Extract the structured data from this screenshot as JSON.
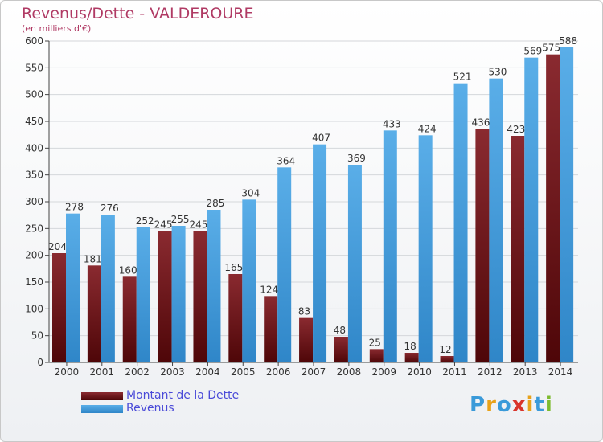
{
  "chart_data": {
    "type": "bar",
    "title": "Revenus/Dette - VALDEROURE",
    "subtitle": "(en milliers d'€)",
    "categories": [
      "2000",
      "2001",
      "2002",
      "2003",
      "2004",
      "2005",
      "2006",
      "2007",
      "2008",
      "2009",
      "2010",
      "2011",
      "2012",
      "2013",
      "2014"
    ],
    "series": [
      {
        "name": "Montant de la Dette",
        "color": "#7a1f24",
        "values": [
          204,
          181,
          160,
          245,
          245,
          165,
          124,
          83,
          48,
          25,
          18,
          12,
          436,
          423,
          575
        ]
      },
      {
        "name": "Revenus",
        "color": "#4fa3e3",
        "values": [
          278,
          276,
          252,
          255,
          285,
          304,
          364,
          407,
          369,
          433,
          424,
          521,
          530,
          569,
          588
        ]
      }
    ],
    "ylim": [
      0,
      600
    ],
    "yticks": [
      0,
      50,
      100,
      150,
      200,
      250,
      300,
      350,
      400,
      450,
      500,
      550,
      600
    ],
    "grid": true,
    "legend_position": "bottom-left"
  },
  "logo": {
    "text": "Proxiti",
    "letters": [
      {
        "ch": "P",
        "color": "#3a9ad9"
      },
      {
        "ch": "r",
        "color": "#e8a21a"
      },
      {
        "ch": "o",
        "color": "#3a9ad9"
      },
      {
        "ch": "x",
        "color": "#d9342b"
      },
      {
        "ch": "i",
        "color": "#e8a21a"
      },
      {
        "ch": "t",
        "color": "#3a9ad9"
      },
      {
        "ch": "i",
        "color": "#7dbb2d"
      }
    ]
  }
}
